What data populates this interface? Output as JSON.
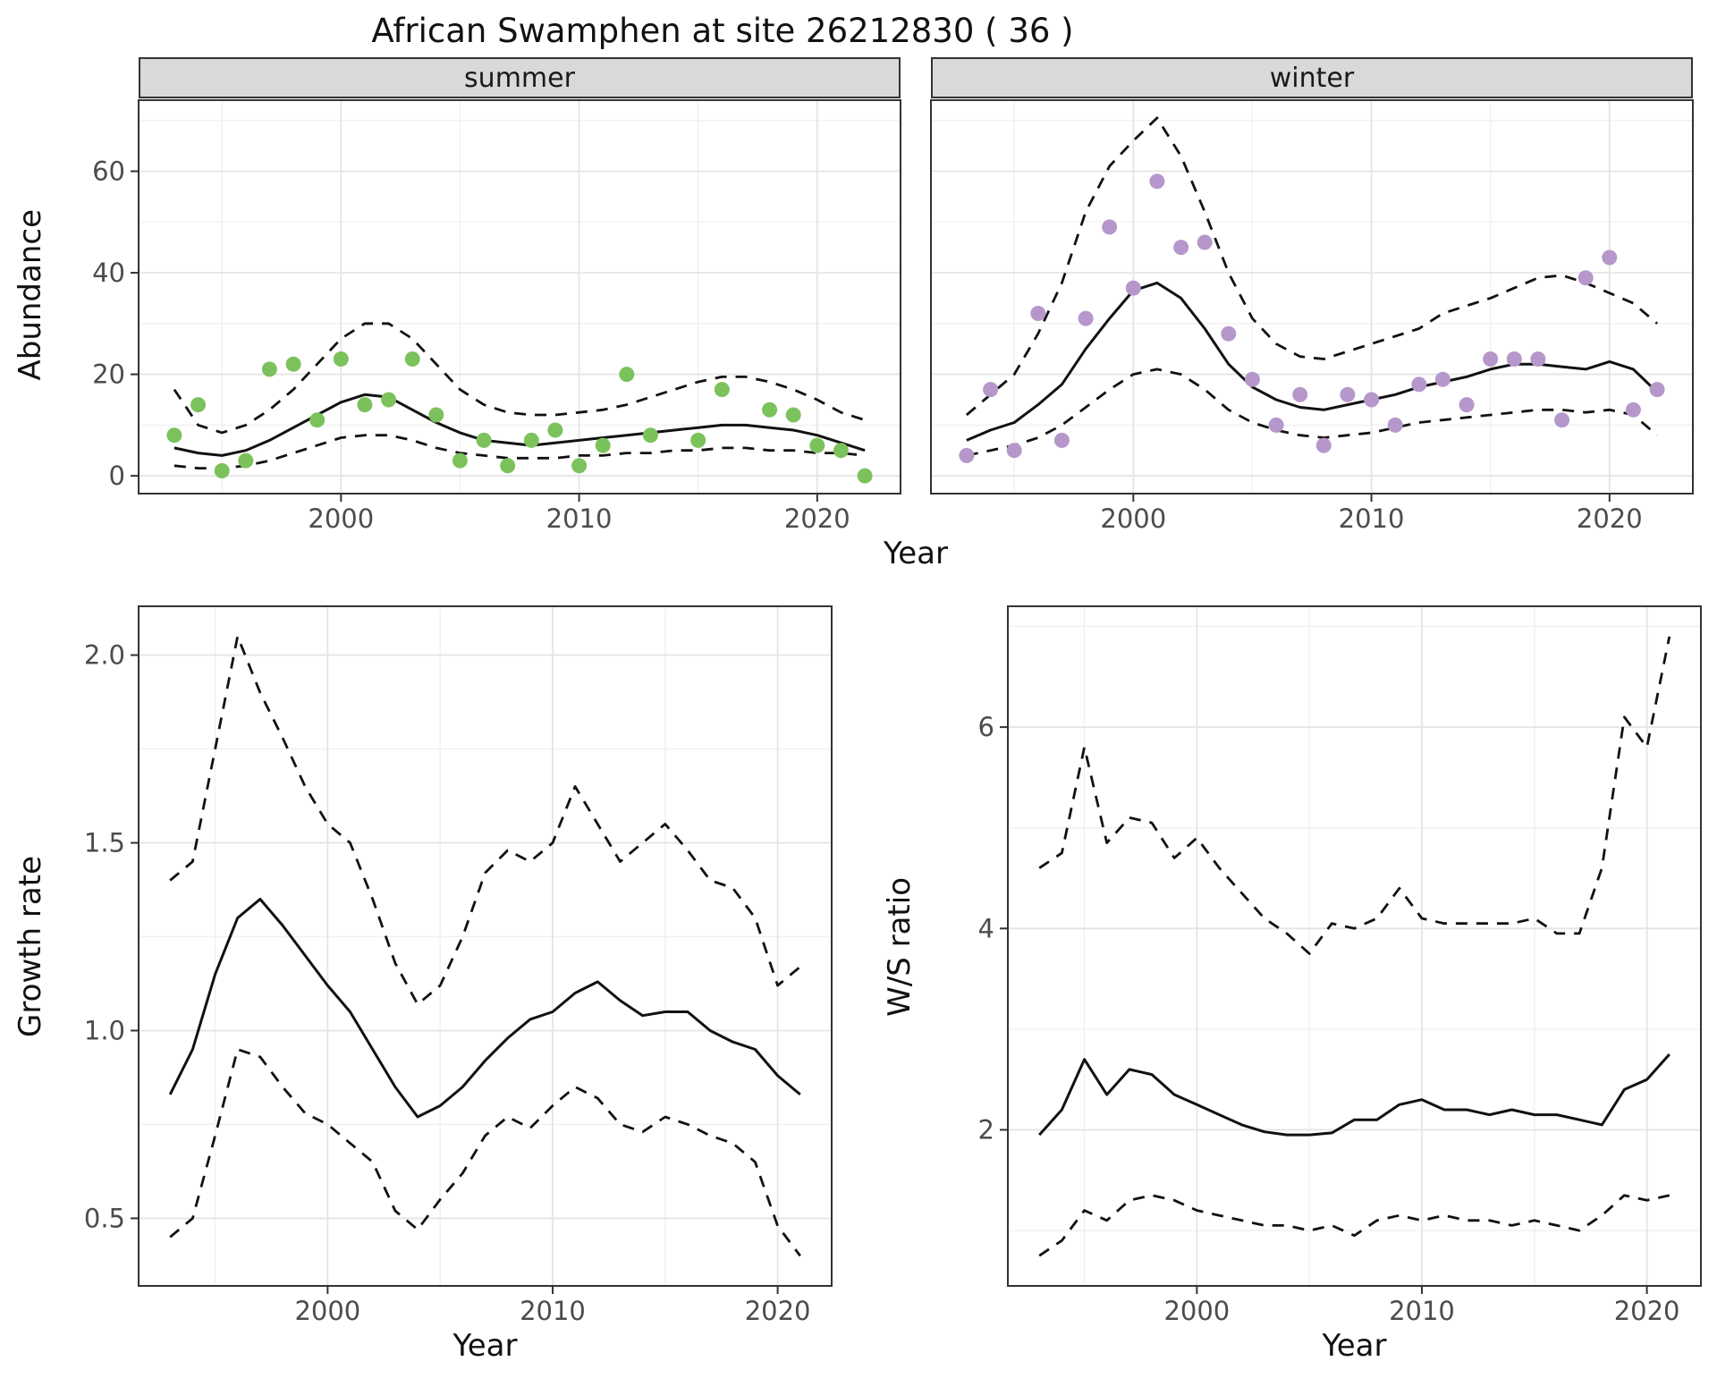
{
  "title": "African Swamphen at site 26212830 ( 36 )",
  "axis_titles": {
    "year": "Year",
    "abundance": "Abundance",
    "growth_rate": "Growth rate",
    "ws_ratio": "W/S ratio"
  },
  "facets": [
    "summer",
    "winter"
  ],
  "colors": {
    "summer_points": "#7cc25c",
    "winter_points": "#b697cb",
    "line": "#111111",
    "strip_bg": "#d9d9d9",
    "panel_border": "#333333",
    "grid_major": "#e4e4e4",
    "grid_minor": "#f0f0f0",
    "tick_text": "#4c4c4c"
  },
  "chart_data": [
    {
      "id": "summer",
      "type": "scatter",
      "facet_label": "summer",
      "xlabel": "Year",
      "ylabel": "Abundance",
      "xlim": [
        1991.5,
        2023.5
      ],
      "ylim": [
        -3.5,
        74
      ],
      "xticks": [
        2000,
        2010,
        2020
      ],
      "xtick_labels": [
        "2000",
        "2010",
        "2020"
      ],
      "yticks": [
        0,
        20,
        40,
        60
      ],
      "ytick_labels": [
        "0",
        "20",
        "40",
        "60"
      ],
      "show_y_axis": true,
      "point_color": "#7cc25c",
      "points": {
        "x": [
          1993,
          1994,
          1995,
          1996,
          1997,
          1998,
          1999,
          2000,
          2001,
          2002,
          2003,
          2004,
          2005,
          2006,
          2007,
          2008,
          2009,
          2010,
          2011,
          2012,
          2013,
          2015,
          2016,
          2018,
          2019,
          2020,
          2021,
          2022
        ],
        "y": [
          8,
          14,
          1,
          3,
          21,
          22,
          11,
          23,
          14,
          15,
          23,
          12,
          3,
          7,
          2,
          7,
          9,
          2,
          6,
          20,
          8,
          7,
          17,
          13,
          12,
          6,
          5,
          0
        ]
      },
      "x": [
        1993,
        1994,
        1995,
        1996,
        1997,
        1998,
        1999,
        2000,
        2001,
        2002,
        2003,
        2004,
        2005,
        2006,
        2007,
        2008,
        2009,
        2010,
        2011,
        2012,
        2013,
        2014,
        2015,
        2016,
        2017,
        2018,
        2019,
        2020,
        2021,
        2022
      ],
      "series": [
        {
          "name": "fit",
          "style": "solid",
          "y": [
            5.5,
            4.5,
            4,
            5,
            7,
            9.5,
            12,
            14.5,
            16,
            15.5,
            13,
            10.5,
            8.5,
            7,
            6.5,
            6,
            6.5,
            7,
            7.5,
            8,
            8.5,
            9,
            9.5,
            10,
            10,
            9.5,
            9,
            8,
            6.5,
            5
          ]
        },
        {
          "name": "upper_ci",
          "style": "dashed",
          "y": [
            17,
            10,
            8.5,
            10,
            13,
            17,
            22,
            27,
            30,
            30,
            27,
            22,
            17,
            14,
            12.5,
            12,
            12,
            12.5,
            13,
            14,
            15.5,
            17,
            18.5,
            19.5,
            19.5,
            18.5,
            17,
            15,
            12.5,
            11
          ]
        },
        {
          "name": "lower_ci",
          "style": "dashed",
          "y": [
            2,
            1.5,
            1.5,
            2,
            3,
            4.5,
            6,
            7.5,
            8,
            8,
            7,
            5.5,
            4.5,
            4,
            3.5,
            3.5,
            3.5,
            4,
            4,
            4.5,
            4.5,
            5,
            5,
            5.5,
            5.5,
            5,
            5,
            4.5,
            4.5,
            4
          ]
        }
      ]
    },
    {
      "id": "winter",
      "type": "scatter",
      "facet_label": "winter",
      "xlabel": "Year",
      "ylabel": "Abundance",
      "xlim": [
        1991.5,
        2023.5
      ],
      "ylim": [
        -3.5,
        74
      ],
      "xticks": [
        2000,
        2010,
        2020
      ],
      "xtick_labels": [
        "2000",
        "2010",
        "2020"
      ],
      "yticks": [
        0,
        20,
        40,
        60
      ],
      "ytick_labels": [
        "0",
        "20",
        "40",
        "60"
      ],
      "show_y_axis": false,
      "point_color": "#b697cb",
      "points": {
        "x": [
          1993,
          1994,
          1995,
          1996,
          1997,
          1998,
          1999,
          2000,
          2001,
          2002,
          2003,
          2004,
          2005,
          2006,
          2007,
          2008,
          2009,
          2010,
          2011,
          2012,
          2013,
          2014,
          2015,
          2016,
          2017,
          2018,
          2019,
          2020,
          2021,
          2022
        ],
        "y": [
          4,
          17,
          5,
          32,
          7,
          31,
          49,
          37,
          58,
          45,
          46,
          28,
          19,
          10,
          16,
          6,
          16,
          15,
          10,
          18,
          19,
          14,
          23,
          23,
          23,
          11,
          39,
          43,
          13,
          17
        ]
      },
      "x": [
        1993,
        1994,
        1995,
        1996,
        1997,
        1998,
        1999,
        2000,
        2001,
        2002,
        2003,
        2004,
        2005,
        2006,
        2007,
        2008,
        2009,
        2010,
        2011,
        2012,
        2013,
        2014,
        2015,
        2016,
        2017,
        2018,
        2019,
        2020,
        2021,
        2022
      ],
      "series": [
        {
          "name": "fit",
          "style": "solid",
          "y": [
            7,
            9,
            10.5,
            14,
            18,
            25,
            31,
            36.5,
            38,
            35,
            29,
            22,
            17.5,
            15,
            13.5,
            13,
            14,
            15,
            16,
            17.5,
            18.5,
            19.5,
            21,
            22,
            22,
            21.5,
            21,
            22.5,
            21,
            16.5
          ]
        },
        {
          "name": "upper_ci",
          "style": "dashed",
          "y": [
            12,
            16,
            20,
            28,
            38,
            52,
            61,
            66,
            70.5,
            63,
            52,
            40,
            31,
            26,
            23.5,
            23,
            24.5,
            26,
            27.5,
            29,
            32,
            33.5,
            35,
            37,
            39,
            39.5,
            38,
            36,
            34,
            30
          ]
        },
        {
          "name": "lower_ci",
          "style": "dashed",
          "y": [
            4,
            5,
            6,
            7.5,
            10,
            13.5,
            17,
            20,
            21,
            20,
            17,
            13,
            10.5,
            9,
            8,
            7.5,
            8,
            8.5,
            9.5,
            10.5,
            11,
            11.5,
            12,
            12.5,
            13,
            13,
            12.5,
            13,
            12,
            8
          ]
        }
      ]
    },
    {
      "id": "growth",
      "type": "line",
      "xlabel": "Year",
      "ylabel": "Growth rate",
      "xlim": [
        1991.6,
        2022.4
      ],
      "ylim": [
        0.32,
        2.13
      ],
      "xticks": [
        2000,
        2010,
        2020
      ],
      "xtick_labels": [
        "2000",
        "2010",
        "2020"
      ],
      "yticks": [
        0.5,
        1.0,
        1.5,
        2.0
      ],
      "ytick_labels": [
        "0.5",
        "1.0",
        "1.5",
        "2.0"
      ],
      "show_y_axis": true,
      "x": [
        1993,
        1994,
        1995,
        1996,
        1997,
        1998,
        1999,
        2000,
        2001,
        2002,
        2003,
        2004,
        2005,
        2006,
        2007,
        2008,
        2009,
        2010,
        2011,
        2012,
        2013,
        2014,
        2015,
        2016,
        2017,
        2018,
        2019,
        2020,
        2021
      ],
      "series": [
        {
          "name": "fit",
          "style": "solid",
          "y": [
            0.83,
            0.95,
            1.15,
            1.3,
            1.35,
            1.28,
            1.2,
            1.12,
            1.05,
            0.95,
            0.85,
            0.77,
            0.8,
            0.85,
            0.92,
            0.98,
            1.03,
            1.05,
            1.1,
            1.13,
            1.08,
            1.04,
            1.05,
            1.05,
            1.0,
            0.97,
            0.95,
            0.88,
            0.83
          ]
        },
        {
          "name": "upper_ci",
          "style": "dashed",
          "y": [
            1.4,
            1.45,
            1.75,
            2.05,
            1.9,
            1.78,
            1.65,
            1.55,
            1.5,
            1.35,
            1.18,
            1.07,
            1.12,
            1.25,
            1.42,
            1.48,
            1.45,
            1.5,
            1.65,
            1.55,
            1.45,
            1.5,
            1.55,
            1.48,
            1.4,
            1.38,
            1.3,
            1.12,
            1.17
          ]
        },
        {
          "name": "lower_ci",
          "style": "dashed",
          "y": [
            0.45,
            0.5,
            0.72,
            0.95,
            0.93,
            0.85,
            0.78,
            0.75,
            0.7,
            0.65,
            0.52,
            0.47,
            0.55,
            0.62,
            0.72,
            0.77,
            0.74,
            0.8,
            0.85,
            0.82,
            0.75,
            0.73,
            0.77,
            0.75,
            0.72,
            0.7,
            0.65,
            0.48,
            0.4
          ]
        }
      ]
    },
    {
      "id": "ratio",
      "type": "line",
      "xlabel": "Year",
      "ylabel": "W/S ratio",
      "xlim": [
        1991.6,
        2022.4
      ],
      "ylim": [
        0.45,
        7.2
      ],
      "xticks": [
        2000,
        2010,
        2020
      ],
      "xtick_labels": [
        "2000",
        "2010",
        "2020"
      ],
      "yticks": [
        2,
        4,
        6
      ],
      "ytick_labels": [
        "2",
        "4",
        "6"
      ],
      "show_y_axis": true,
      "x": [
        1993,
        1994,
        1995,
        1996,
        1997,
        1998,
        1999,
        2000,
        2001,
        2002,
        2003,
        2004,
        2005,
        2006,
        2007,
        2008,
        2009,
        2010,
        2011,
        2012,
        2013,
        2014,
        2015,
        2016,
        2017,
        2018,
        2019,
        2020,
        2021
      ],
      "series": [
        {
          "name": "fit",
          "style": "solid",
          "y": [
            1.95,
            2.2,
            2.7,
            2.35,
            2.6,
            2.55,
            2.35,
            2.25,
            2.15,
            2.05,
            1.98,
            1.95,
            1.95,
            1.97,
            2.1,
            2.1,
            2.25,
            2.3,
            2.2,
            2.2,
            2.15,
            2.2,
            2.15,
            2.15,
            2.1,
            2.05,
            2.4,
            2.5,
            2.75
          ]
        },
        {
          "name": "upper_ci",
          "style": "dashed",
          "y": [
            4.6,
            4.75,
            5.8,
            4.85,
            5.1,
            5.05,
            4.7,
            4.9,
            4.6,
            4.35,
            4.1,
            3.95,
            3.75,
            4.05,
            4.0,
            4.1,
            4.4,
            4.1,
            4.05,
            4.05,
            4.05,
            4.05,
            4.1,
            3.95,
            3.95,
            4.6,
            6.1,
            5.8,
            6.9
          ]
        },
        {
          "name": "lower_ci",
          "style": "dashed",
          "y": [
            0.75,
            0.9,
            1.2,
            1.1,
            1.3,
            1.35,
            1.3,
            1.2,
            1.15,
            1.1,
            1.05,
            1.05,
            1.0,
            1.05,
            0.95,
            1.1,
            1.15,
            1.1,
            1.15,
            1.1,
            1.1,
            1.05,
            1.1,
            1.05,
            1.0,
            1.15,
            1.35,
            1.3,
            1.35
          ]
        }
      ]
    }
  ]
}
